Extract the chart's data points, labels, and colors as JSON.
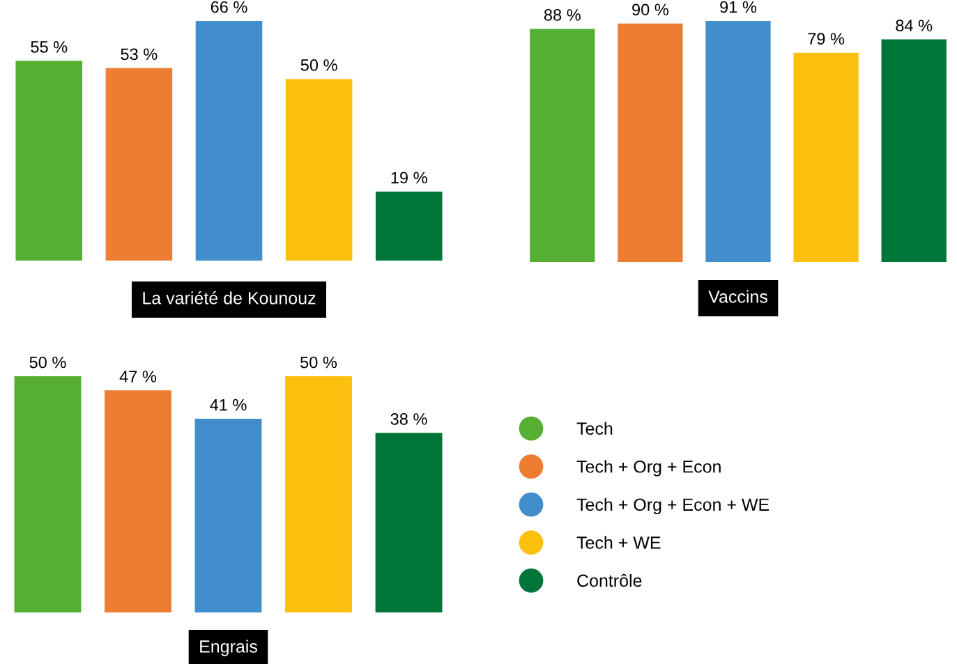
{
  "chart_data": [
    {
      "type": "bar",
      "title": "La variété de Kounouz",
      "categories": [
        null,
        null,
        null,
        null,
        null
      ],
      "tick_labels": false,
      "values": [
        55,
        53,
        66,
        50,
        19
      ],
      "colors": [
        "#56ae32",
        "#ed7d31",
        "#428dcb",
        "#fbc00d",
        "#00753a"
      ],
      "value_labels": [
        "55 %",
        "53 %",
        "66 %",
        "50 %",
        "19 %"
      ]
    },
    {
      "type": "bar",
      "title": "Vaccins",
      "categories": [
        null,
        null,
        null,
        null,
        null
      ],
      "tick_labels": false,
      "values": [
        88,
        90,
        91,
        79,
        84
      ],
      "colors": [
        "#56ae32",
        "#ed7d31",
        "#428dcb",
        "#fbc00d",
        "#00753a"
      ],
      "value_labels": [
        "88 %",
        "90 %",
        "91 %",
        "79 %",
        "84 %"
      ]
    },
    {
      "type": "bar",
      "title": "Engrais",
      "categories": [
        null,
        null,
        null,
        null,
        null
      ],
      "stacked": true,
      "tick_labels": false,
      "legend": "right",
      "marker": "circle",
      "series": [
        {
          "name": "Tech",
          "color": "#56ae32",
          "values": [
            50,
            null,
            null,
            null,
            null
          ],
          "value_labels": [
            "50 %",
            null,
            null,
            null,
            null
          ]
        },
        {
          "name": "Tech + Org + Econ",
          "color": "#ed7d31",
          "values": [
            null,
            47,
            null,
            null,
            null
          ],
          "value_labels": [
            null,
            "47 %",
            null,
            null,
            null
          ]
        },
        {
          "name": "Tech + Org + Econ + WE",
          "color": "#428dcb",
          "values": [
            null,
            null,
            41,
            null,
            null
          ],
          "value_labels": [
            null,
            null,
            "41 %",
            null,
            null
          ]
        },
        {
          "name": "Tech + WE",
          "color": "#fbc00d",
          "values": [
            null,
            null,
            null,
            50,
            null
          ],
          "value_labels": [
            null,
            null,
            null,
            "50 %",
            null
          ]
        },
        {
          "name": "Contrôle",
          "color": "#00753a",
          "values": [
            null,
            null,
            null,
            null,
            38
          ],
          "value_labels": [
            null,
            null,
            null,
            null,
            "38 %"
          ]
        }
      ]
    }
  ]
}
